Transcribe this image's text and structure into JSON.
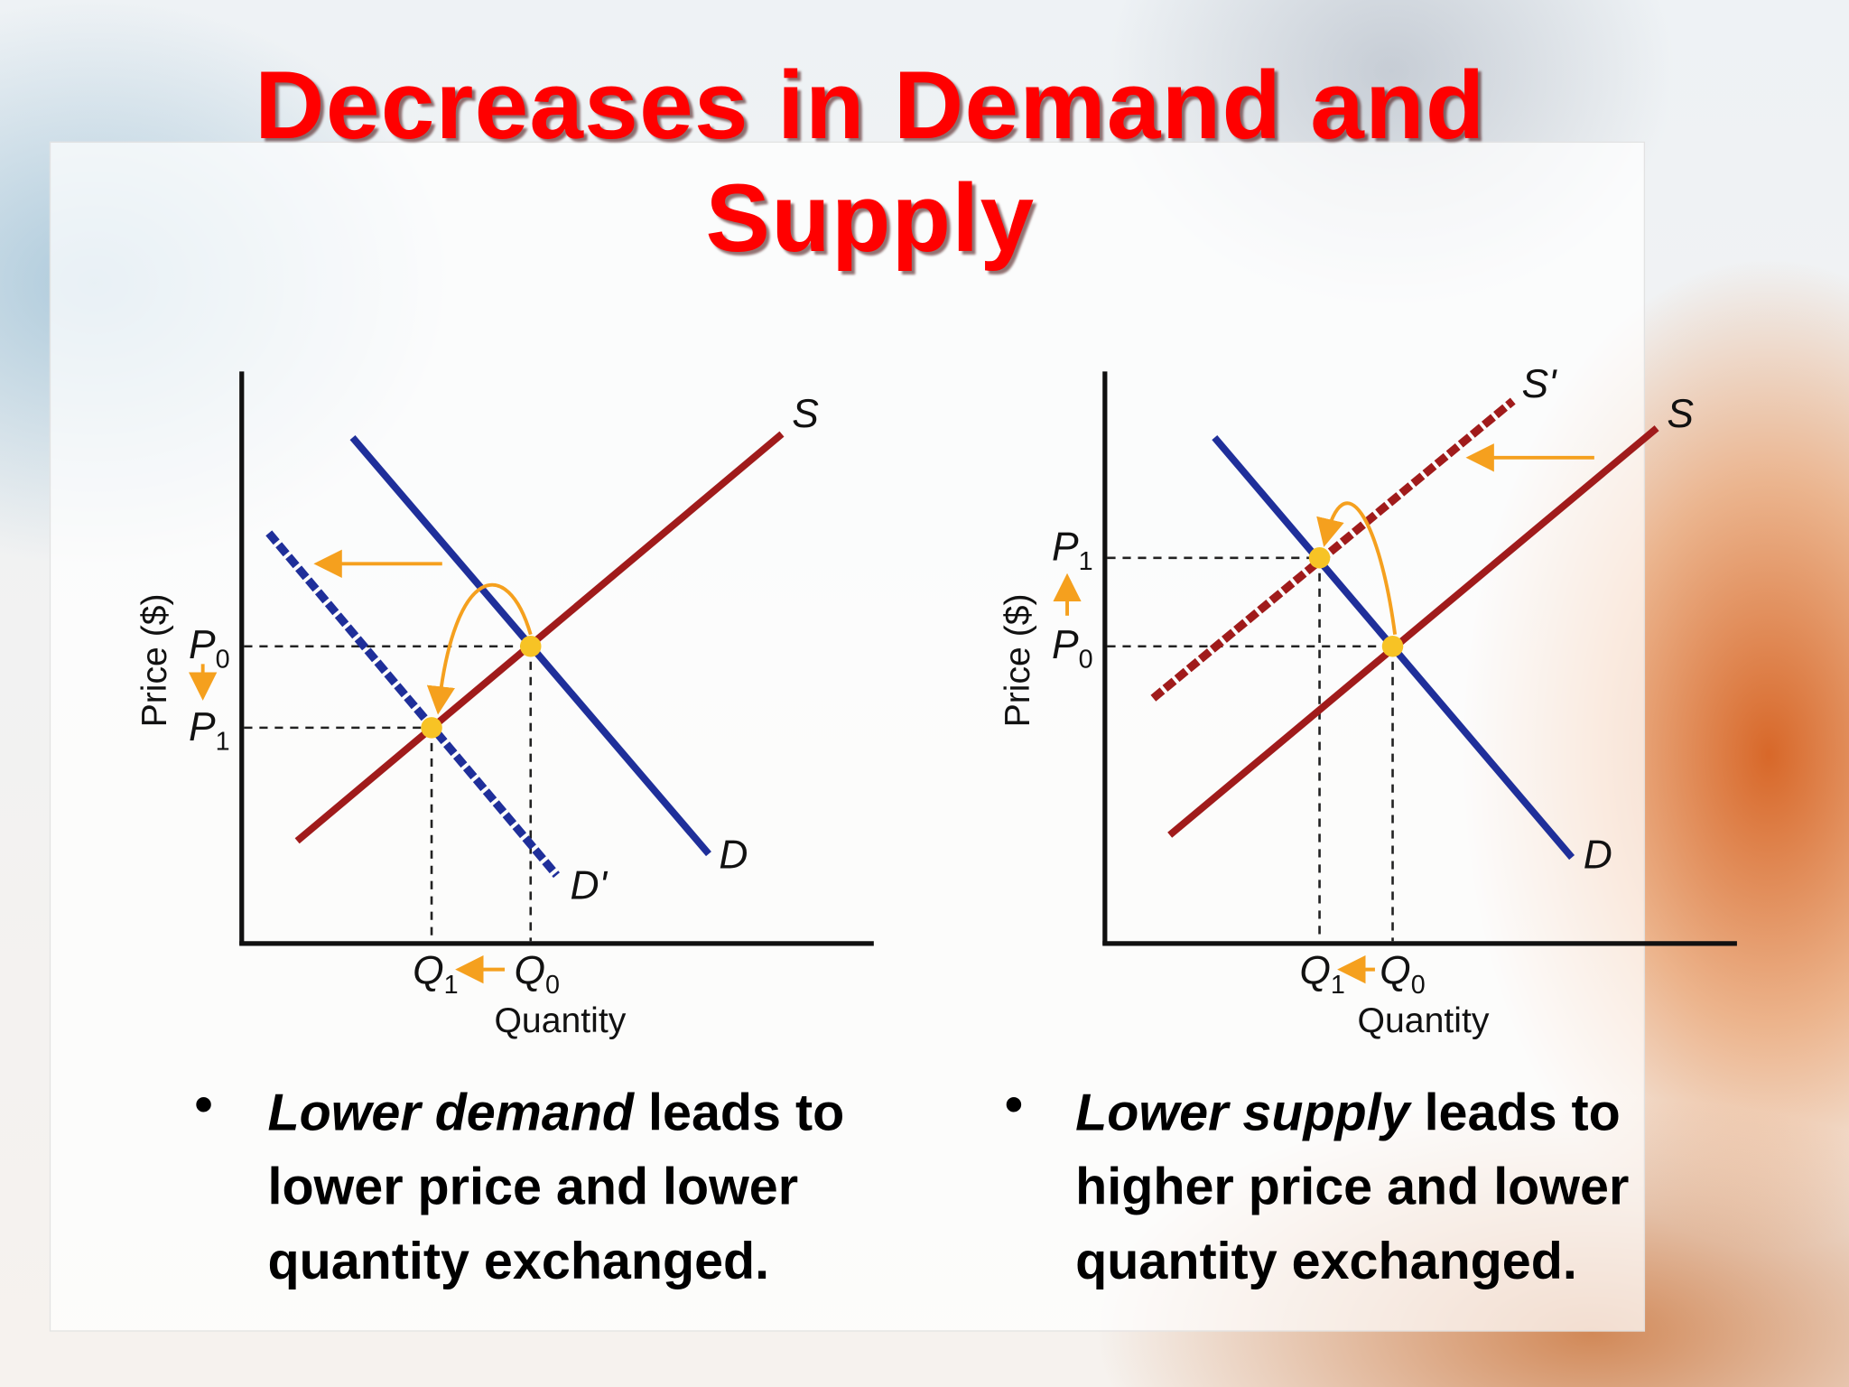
{
  "title": "Decreases in Demand and Supply",
  "diagrams": [
    {
      "price_axis": "Price ($)",
      "quantity_axis": "Quantity",
      "supply": "S",
      "demand": "D",
      "shifted": "D'",
      "prices": [
        {
          "main": "P",
          "sub": "0"
        },
        {
          "main": "P",
          "sub": "1"
        }
      ],
      "quantities": [
        {
          "main": "Q",
          "sub": "1"
        },
        {
          "main": "Q",
          "sub": "0"
        }
      ]
    },
    {
      "price_axis": "Price ($)",
      "quantity_axis": "Quantity",
      "supply": "S",
      "demand": "D",
      "shifted": "S'",
      "prices": [
        {
          "main": "P",
          "sub": "1"
        },
        {
          "main": "P",
          "sub": "0"
        }
      ],
      "quantities": [
        {
          "main": "Q",
          "sub": "1"
        },
        {
          "main": "Q",
          "sub": "0"
        }
      ]
    }
  ],
  "bullets": [
    {
      "emphasis": "Lower demand",
      "rest": "leads to lower price and lower quantity exchanged."
    },
    {
      "emphasis": "Lower supply",
      "rest": "leads to higher price and lower quantity exchanged."
    }
  ]
}
